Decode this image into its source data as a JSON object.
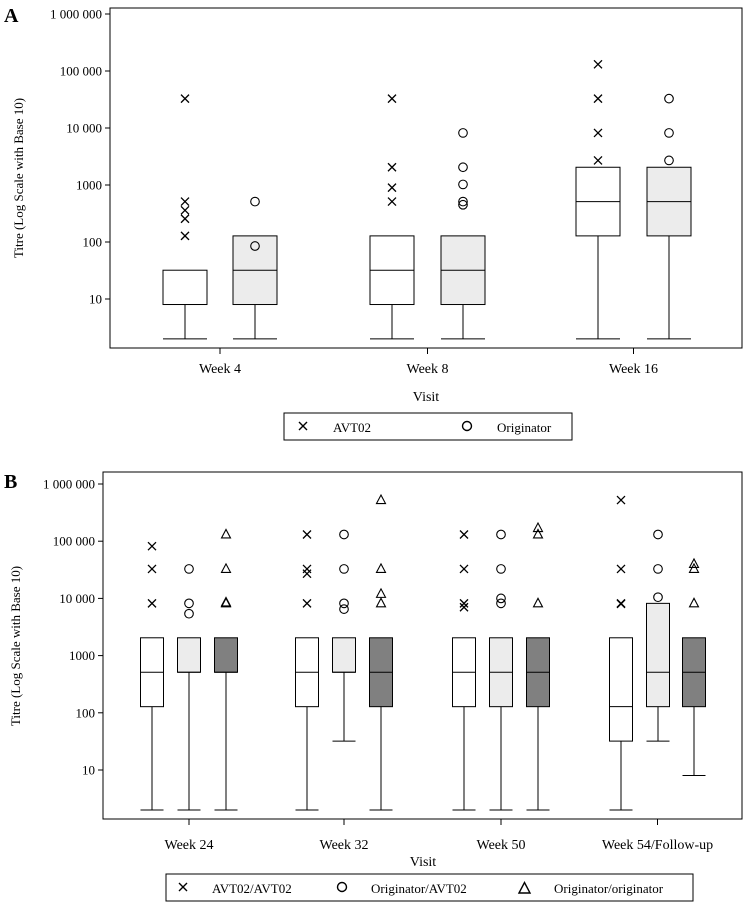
{
  "chart_data": [
    {
      "panel_label": "A",
      "type": "box",
      "xlabel": "Visit",
      "ylabel": "Titre (Log Scale with Base 10)",
      "y_scale": "log10",
      "ylim": [
        1.8,
        1000000
      ],
      "y_ticks": [
        10,
        100,
        1000,
        10000,
        100000,
        1000000
      ],
      "y_tick_labels": [
        "10",
        "100",
        "1000",
        "10 000",
        "100 000",
        "1 000 000"
      ],
      "categories": [
        "Week 4",
        "Week 8",
        "Week 16"
      ],
      "legend": [
        {
          "name": "AVT02",
          "marker": "x",
          "fill": "#ffffff"
        },
        {
          "name": "Originator",
          "marker": "circle",
          "fill": "#ececec"
        }
      ],
      "groups": [
        {
          "category": "Week 4",
          "boxes": [
            {
              "series": "AVT02",
              "min": 2,
              "q1": 8,
              "median": 8,
              "q3": 32,
              "max": 32,
              "outliers": [
                128,
                256,
                360,
                512,
                32768
              ]
            },
            {
              "series": "Originator",
              "min": 2,
              "q1": 8,
              "median": 32,
              "q3": 128,
              "max": 128,
              "outliers": [
                85,
                512
              ]
            }
          ]
        },
        {
          "category": "Week 8",
          "boxes": [
            {
              "series": "AVT02",
              "min": 2,
              "q1": 8,
              "median": 32,
              "q3": 128,
              "max": 128,
              "outliers": [
                512,
                900,
                2048,
                32768
              ]
            },
            {
              "series": "Originator",
              "min": 2,
              "q1": 8,
              "median": 32,
              "q3": 128,
              "max": 128,
              "outliers": [
                450,
                512,
                1024,
                2048,
                8192
              ]
            }
          ]
        },
        {
          "category": "Week 16",
          "boxes": [
            {
              "series": "AVT02",
              "min": 2,
              "q1": 128,
              "median": 512,
              "q3": 2048,
              "max": 2048,
              "outliers": [
                2700,
                8192,
                32768,
                131072
              ]
            },
            {
              "series": "Originator",
              "min": 2,
              "q1": 128,
              "median": 512,
              "q3": 2048,
              "max": 2048,
              "outliers": [
                2700,
                8192,
                32768
              ]
            }
          ]
        }
      ]
    },
    {
      "panel_label": "B",
      "type": "box",
      "xlabel": "Visit",
      "ylabel": "Titre (Log Scale with Base 10)",
      "y_scale": "log10",
      "ylim": [
        1.8,
        1000000
      ],
      "y_ticks": [
        10,
        100,
        1000,
        10000,
        100000,
        1000000
      ],
      "y_tick_labels": [
        "10",
        "100",
        "1000",
        "10 000",
        "100 000",
        "1 000 000"
      ],
      "categories": [
        "Week 24",
        "Week 32",
        "Week 50",
        "Week 54/Follow-up"
      ],
      "legend": [
        {
          "name": "AVT02/AVT02",
          "marker": "x",
          "fill": "#ffffff"
        },
        {
          "name": "Originator/AVT02",
          "marker": "circle",
          "fill": "#ececec"
        },
        {
          "name": "Originator/originator",
          "marker": "triangle",
          "fill": "#808080"
        }
      ],
      "groups": [
        {
          "category": "Week 24",
          "boxes": [
            {
              "series": "AVT02/AVT02",
              "min": 2,
              "q1": 128,
              "median": 512,
              "q3": 2048,
              "max": 2048,
              "outliers": [
                8192,
                32768,
                81920
              ]
            },
            {
              "series": "Originator/AVT02",
              "min": 2,
              "q1": 512,
              "median": 512,
              "q3": 2048,
              "max": 2048,
              "outliers": [
                5400,
                8192,
                32768
              ]
            },
            {
              "series": "Originator/originator",
              "min": 2,
              "q1": 512,
              "median": 512,
              "q3": 2048,
              "max": 2048,
              "outliers": [
                8192,
                8500,
                32768,
                131072
              ]
            }
          ]
        },
        {
          "category": "Week 32",
          "boxes": [
            {
              "series": "AVT02/AVT02",
              "min": 2,
              "q1": 128,
              "median": 512,
              "q3": 2048,
              "max": 2048,
              "outliers": [
                8192,
                27000,
                32768,
                131072
              ]
            },
            {
              "series": "Originator/AVT02",
              "min": 32,
              "q1": 512,
              "median": 512,
              "q3": 2048,
              "max": 2048,
              "outliers": [
                6500,
                8192,
                32768,
                131072
              ]
            },
            {
              "series": "Originator/originator",
              "min": 2,
              "q1": 128,
              "median": 512,
              "q3": 2048,
              "max": 2048,
              "outliers": [
                8192,
                12000,
                32768,
                524288
              ]
            }
          ]
        },
        {
          "category": "Week 50",
          "boxes": [
            {
              "series": "AVT02/AVT02",
              "min": 2,
              "q1": 128,
              "median": 512,
              "q3": 2048,
              "max": 2048,
              "outliers": [
                7000,
                8192,
                32768,
                131072
              ]
            },
            {
              "series": "Originator/AVT02",
              "min": 2,
              "q1": 128,
              "median": 512,
              "q3": 2048,
              "max": 2048,
              "outliers": [
                8192,
                10000,
                32768,
                131072
              ]
            },
            {
              "series": "Originator/originator",
              "min": 2,
              "q1": 128,
              "median": 512,
              "q3": 2048,
              "max": 2048,
              "outliers": [
                8192,
                131072,
                170000
              ]
            }
          ]
        },
        {
          "category": "Week 54/Follow-up",
          "boxes": [
            {
              "series": "AVT02/AVT02",
              "min": 2,
              "q1": 32,
              "median": 128,
              "q3": 2048,
              "max": 2048,
              "outliers": [
                8000,
                8192,
                32768,
                524288
              ]
            },
            {
              "series": "Originator/AVT02",
              "min": 32,
              "q1": 128,
              "median": 512,
              "q3": 8192,
              "max": 8192,
              "outliers": [
                10500,
                32768,
                131072
              ]
            },
            {
              "series": "Originator/originator",
              "min": 8,
              "q1": 128,
              "median": 512,
              "q3": 2048,
              "max": 2048,
              "outliers": [
                8192,
                32768,
                40000
              ]
            }
          ]
        }
      ]
    }
  ]
}
